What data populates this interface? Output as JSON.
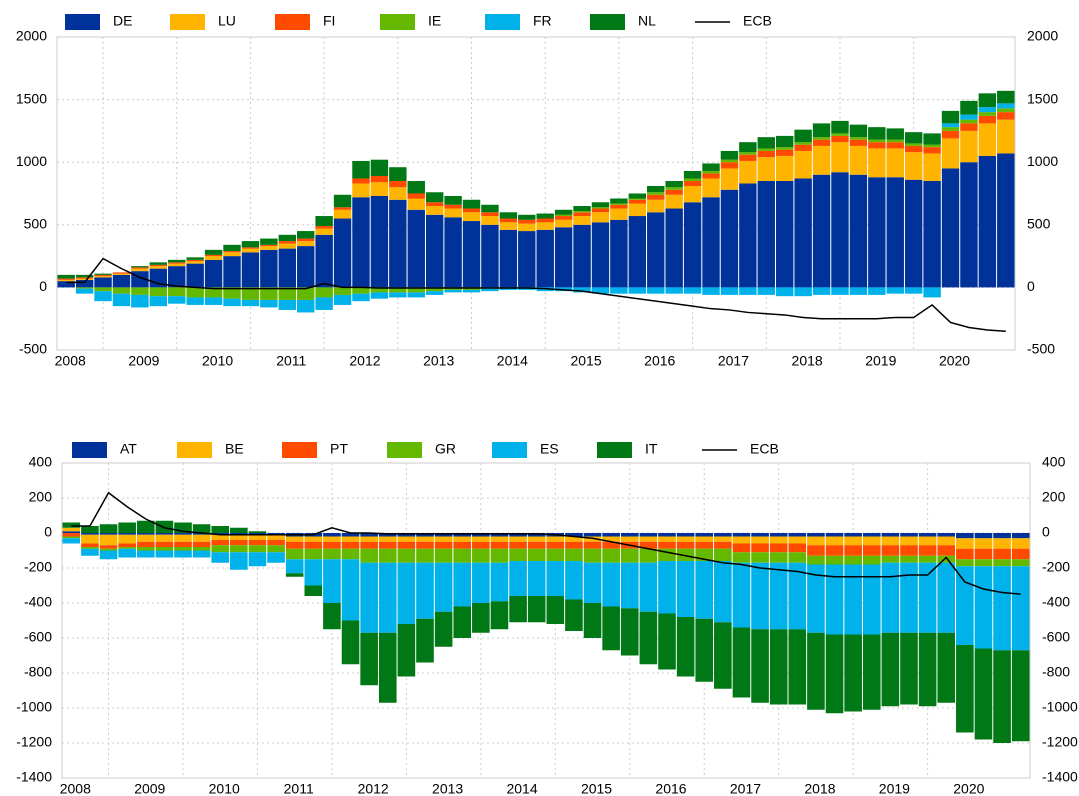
{
  "chart_data": [
    {
      "type": "bar",
      "stacked": true,
      "categories": [
        "2008",
        null,
        null,
        null,
        "2009",
        null,
        null,
        null,
        "2010",
        null,
        null,
        null,
        "2011",
        null,
        null,
        null,
        "2012",
        null,
        null,
        null,
        "2013",
        null,
        null,
        null,
        "2014",
        null,
        null,
        null,
        "2015",
        null,
        null,
        null,
        "2016",
        null,
        null,
        null,
        "2017",
        null,
        null,
        null,
        "2018",
        null,
        null,
        null,
        "2019",
        null,
        null,
        null,
        "2020",
        null,
        null,
        null
      ],
      "series": [
        {
          "name": "DE",
          "color": "#003299",
          "values": [
            50,
            60,
            80,
            100,
            130,
            150,
            170,
            190,
            220,
            250,
            280,
            300,
            310,
            330,
            420,
            550,
            720,
            730,
            700,
            620,
            580,
            560,
            530,
            500,
            460,
            450,
            460,
            480,
            500,
            520,
            540,
            570,
            600,
            630,
            680,
            720,
            780,
            830,
            850,
            850,
            870,
            900,
            920,
            900,
            880,
            880,
            860,
            850,
            950,
            1000,
            1050,
            1070
          ]
        },
        {
          "name": "LU",
          "color": "#ffb400",
          "values": [
            10,
            10,
            10,
            10,
            20,
            20,
            20,
            20,
            30,
            30,
            30,
            30,
            40,
            40,
            50,
            70,
            110,
            110,
            100,
            90,
            70,
            70,
            70,
            70,
            60,
            60,
            60,
            60,
            70,
            80,
            90,
            100,
            100,
            110,
            130,
            150,
            170,
            180,
            190,
            200,
            220,
            230,
            240,
            230,
            230,
            230,
            220,
            220,
            240,
            250,
            260,
            270
          ]
        },
        {
          "name": "FI",
          "color": "#ff4b00",
          "values": [
            10,
            10,
            10,
            10,
            10,
            10,
            10,
            10,
            10,
            10,
            10,
            10,
            20,
            20,
            20,
            20,
            40,
            50,
            50,
            40,
            30,
            30,
            30,
            30,
            30,
            30,
            30,
            30,
            30,
            30,
            30,
            30,
            40,
            40,
            40,
            40,
            50,
            50,
            50,
            50,
            50,
            50,
            50,
            50,
            50,
            50,
            50,
            50,
            60,
            60,
            60,
            60
          ]
        },
        {
          "name": "IE",
          "color": "#65b800",
          "values": [
            0,
            -10,
            -30,
            -50,
            -60,
            -70,
            -70,
            -80,
            -80,
            -90,
            -100,
            -100,
            -100,
            -100,
            -80,
            -60,
            -50,
            -40,
            -40,
            -40,
            -30,
            -20,
            -20,
            -10,
            0,
            0,
            0,
            10,
            10,
            10,
            10,
            10,
            20,
            20,
            20,
            20,
            20,
            20,
            20,
            20,
            20,
            20,
            20,
            20,
            20,
            20,
            20,
            20,
            30,
            30,
            30,
            30
          ]
        },
        {
          "name": "FR",
          "color": "#00b1ea",
          "values": [
            0,
            -40,
            -80,
            -100,
            -100,
            -80,
            -60,
            -60,
            -60,
            -60,
            -50,
            -60,
            -80,
            -100,
            -100,
            -80,
            -60,
            -50,
            -40,
            -40,
            -30,
            -20,
            -20,
            -20,
            -20,
            -20,
            -30,
            -30,
            -40,
            -50,
            -50,
            -50,
            -50,
            -50,
            -50,
            -60,
            -60,
            -60,
            -60,
            -70,
            -70,
            -60,
            -60,
            -60,
            -60,
            -50,
            -50,
            -80,
            30,
            40,
            40,
            40
          ]
        },
        {
          "name": "NL",
          "color": "#007816",
          "values": [
            30,
            20,
            10,
            0,
            10,
            20,
            20,
            20,
            40,
            50,
            50,
            50,
            50,
            60,
            80,
            100,
            140,
            130,
            110,
            100,
            80,
            70,
            70,
            60,
            50,
            40,
            40,
            40,
            40,
            40,
            40,
            40,
            50,
            50,
            60,
            60,
            70,
            80,
            90,
            90,
            100,
            110,
            100,
            100,
            100,
            90,
            90,
            90,
            100,
            110,
            110,
            100
          ]
        },
        {
          "name": "ECB",
          "type": "line",
          "color": "#000000",
          "values": [
            40,
            40,
            230,
            150,
            80,
            30,
            10,
            0,
            -10,
            -10,
            -10,
            -10,
            -10,
            -10,
            30,
            0,
            0,
            -5,
            -5,
            -5,
            -5,
            -5,
            -5,
            -5,
            -5,
            -5,
            -10,
            -20,
            -30,
            -50,
            -70,
            -90,
            -110,
            -130,
            -150,
            -170,
            -180,
            -200,
            -210,
            -220,
            -240,
            -250,
            -250,
            -250,
            -250,
            -240,
            -240,
            -140,
            -280,
            -320,
            -340,
            -350
          ]
        }
      ],
      "ylim": [
        -500,
        2000
      ],
      "yticks": [
        -500,
        0,
        500,
        1000,
        1500,
        2000
      ],
      "y2lim": [
        -500,
        2000
      ],
      "y2ticks": [
        -500,
        0,
        500,
        1000,
        1500,
        2000
      ],
      "grid": true,
      "legend": "top"
    },
    {
      "type": "bar",
      "stacked": true,
      "categories": [
        "2008",
        null,
        null,
        null,
        "2009",
        null,
        null,
        null,
        "2010",
        null,
        null,
        null,
        "2011",
        null,
        null,
        null,
        "2012",
        null,
        null,
        null,
        "2013",
        null,
        null,
        null,
        "2014",
        null,
        null,
        null,
        "2015",
        null,
        null,
        null,
        "2016",
        null,
        null,
        null,
        "2017",
        null,
        null,
        null,
        "2018",
        null,
        null,
        null,
        "2019",
        null,
        null,
        null,
        "2020",
        null,
        null,
        null
      ],
      "series": [
        {
          "name": "AT",
          "color": "#003299",
          "values": [
            10,
            -10,
            -10,
            -10,
            -10,
            -10,
            -10,
            -10,
            -10,
            -10,
            -10,
            -10,
            -20,
            -20,
            -20,
            -20,
            -20,
            -20,
            -20,
            -20,
            -20,
            -20,
            -20,
            -20,
            -20,
            -20,
            -20,
            -20,
            -20,
            -20,
            -20,
            -20,
            -20,
            -20,
            -20,
            -20,
            -20,
            -20,
            -20,
            -20,
            -20,
            -20,
            -20,
            -20,
            -20,
            -20,
            -20,
            -20,
            -30,
            -30,
            -30,
            -30
          ]
        },
        {
          "name": "BE",
          "color": "#ffb400",
          "values": [
            20,
            -50,
            -60,
            -50,
            -40,
            -40,
            -40,
            -40,
            -30,
            -30,
            -30,
            -30,
            -30,
            -30,
            -30,
            -30,
            -30,
            -30,
            -30,
            -30,
            -30,
            -30,
            -30,
            -30,
            -30,
            -30,
            -30,
            -30,
            -30,
            -30,
            -30,
            -30,
            -30,
            -30,
            -30,
            -30,
            -40,
            -40,
            -40,
            -40,
            -50,
            -50,
            -50,
            -50,
            -50,
            -50,
            -50,
            -50,
            -60,
            -60,
            -60,
            -60
          ]
        },
        {
          "name": "PT",
          "color": "#ff4b00",
          "values": [
            -20,
            -20,
            -20,
            -20,
            -30,
            -30,
            -30,
            -30,
            -30,
            -30,
            -30,
            -30,
            -40,
            -40,
            -40,
            -40,
            -40,
            -40,
            -40,
            -40,
            -40,
            -40,
            -40,
            -40,
            -40,
            -40,
            -40,
            -40,
            -40,
            -40,
            -40,
            -40,
            -40,
            -40,
            -40,
            -40,
            -50,
            -50,
            -50,
            -50,
            -60,
            -60,
            -60,
            -60,
            -60,
            -60,
            -60,
            -60,
            -60,
            -60,
            -60,
            -60
          ]
        },
        {
          "name": "GR",
          "color": "#65b800",
          "values": [
            -10,
            -10,
            -10,
            -10,
            -20,
            -20,
            -20,
            -20,
            -40,
            -40,
            -40,
            -40,
            -60,
            -60,
            -60,
            -60,
            -80,
            -80,
            -80,
            -80,
            -80,
            -80,
            -80,
            -80,
            -70,
            -70,
            -70,
            -70,
            -80,
            -80,
            -80,
            -80,
            -70,
            -70,
            -70,
            -70,
            -60,
            -60,
            -60,
            -60,
            -50,
            -50,
            -50,
            -50,
            -40,
            -40,
            -40,
            -40,
            -40,
            -40,
            -40,
            -40
          ]
        },
        {
          "name": "ES",
          "color": "#00b1ea",
          "values": [
            -30,
            -40,
            -50,
            -50,
            -40,
            -40,
            -40,
            -40,
            -60,
            -100,
            -80,
            -60,
            -80,
            -150,
            -250,
            -350,
            -400,
            -400,
            -350,
            -320,
            -280,
            -250,
            -230,
            -220,
            -200,
            -200,
            -200,
            -220,
            -230,
            -250,
            -260,
            -280,
            -300,
            -320,
            -330,
            -350,
            -370,
            -380,
            -380,
            -380,
            -390,
            -400,
            -400,
            -400,
            -400,
            -400,
            -400,
            -400,
            -450,
            -470,
            -480,
            -480
          ]
        },
        {
          "name": "IT",
          "color": "#007816",
          "values": [
            30,
            40,
            50,
            60,
            70,
            70,
            60,
            50,
            40,
            30,
            10,
            0,
            -20,
            -60,
            -150,
            -250,
            -300,
            -400,
            -300,
            -250,
            -200,
            -180,
            -170,
            -160,
            -150,
            -150,
            -160,
            -180,
            -200,
            -250,
            -270,
            -300,
            -320,
            -340,
            -360,
            -380,
            -400,
            -420,
            -430,
            -430,
            -440,
            -450,
            -440,
            -430,
            -420,
            -410,
            -420,
            -400,
            -500,
            -520,
            -530,
            -520
          ]
        },
        {
          "name": "ECB",
          "type": "line",
          "color": "#000000",
          "values": [
            40,
            40,
            230,
            150,
            80,
            30,
            10,
            0,
            -10,
            -10,
            -10,
            -10,
            -10,
            -10,
            30,
            0,
            0,
            -5,
            -5,
            -5,
            -5,
            -5,
            -5,
            -5,
            -5,
            -5,
            -10,
            -20,
            -30,
            -50,
            -70,
            -90,
            -110,
            -130,
            -150,
            -170,
            -180,
            -200,
            -210,
            -220,
            -240,
            -250,
            -250,
            -250,
            -250,
            -240,
            -240,
            -140,
            -280,
            -320,
            -340,
            -350
          ]
        }
      ],
      "ylim": [
        -1400,
        400
      ],
      "yticks": [
        -1400,
        -1200,
        -1000,
        -800,
        -600,
        -400,
        -200,
        0,
        200,
        400
      ],
      "y2lim": [
        -1400,
        400
      ],
      "y2ticks": [
        -1400,
        -1200,
        -1000,
        -800,
        -600,
        -400,
        -200,
        0,
        200,
        400
      ],
      "grid": true,
      "legend": "top"
    }
  ]
}
